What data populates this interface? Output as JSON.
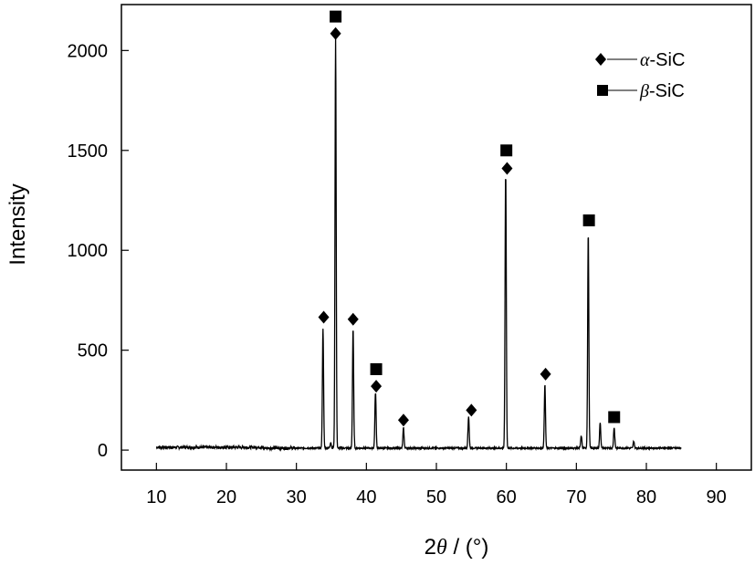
{
  "chart_data": {
    "type": "line",
    "title": "",
    "xlabel_symbol": "θ",
    "xlabel_prefix": "2",
    "xlabel_suffix": " / (°)",
    "ylabel": "Intensity",
    "xlim": [
      5,
      95
    ],
    "ylim": [
      -100,
      2230
    ],
    "x_ticks": [
      10,
      20,
      30,
      40,
      50,
      60,
      70,
      80,
      90
    ],
    "y_ticks": [
      0,
      500,
      1000,
      1500,
      2000
    ],
    "grid": false,
    "legend_position": "top-right",
    "baseline": 10,
    "x_range": [
      10,
      85
    ],
    "peaks": [
      {
        "x": 33.8,
        "y": 610
      },
      {
        "x": 34.9,
        "y": 40
      },
      {
        "x": 35.6,
        "y": 2060
      },
      {
        "x": 38.1,
        "y": 610
      },
      {
        "x": 41.3,
        "y": 290
      },
      {
        "x": 45.3,
        "y": 110
      },
      {
        "x": 54.6,
        "y": 170
      },
      {
        "x": 59.9,
        "y": 1390
      },
      {
        "x": 65.5,
        "y": 330
      },
      {
        "x": 70.7,
        "y": 70
      },
      {
        "x": 71.7,
        "y": 1090
      },
      {
        "x": 73.4,
        "y": 140
      },
      {
        "x": 75.4,
        "y": 115
      },
      {
        "x": 78.2,
        "y": 45
      }
    ],
    "series": [
      {
        "name": "α-SiC",
        "marker": "diamond",
        "points": [
          {
            "x": 33.9,
            "y": 665
          },
          {
            "x": 35.6,
            "y": 2085
          },
          {
            "x": 38.1,
            "y": 655
          },
          {
            "x": 41.4,
            "y": 320
          },
          {
            "x": 45.3,
            "y": 150
          },
          {
            "x": 55.0,
            "y": 200
          },
          {
            "x": 60.1,
            "y": 1410
          },
          {
            "x": 65.6,
            "y": 380
          }
        ]
      },
      {
        "name": "β-SiC",
        "marker": "square",
        "points": [
          {
            "x": 35.6,
            "y": 2170
          },
          {
            "x": 41.4,
            "y": 405
          },
          {
            "x": 60.0,
            "y": 1500
          },
          {
            "x": 71.8,
            "y": 1150
          },
          {
            "x": 75.4,
            "y": 165
          }
        ]
      }
    ],
    "legend": [
      {
        "symbol_label": "α",
        "suffix": "-SiC",
        "marker": "diamond"
      },
      {
        "symbol_label": "β",
        "suffix": "-SiC",
        "marker": "square"
      }
    ]
  }
}
